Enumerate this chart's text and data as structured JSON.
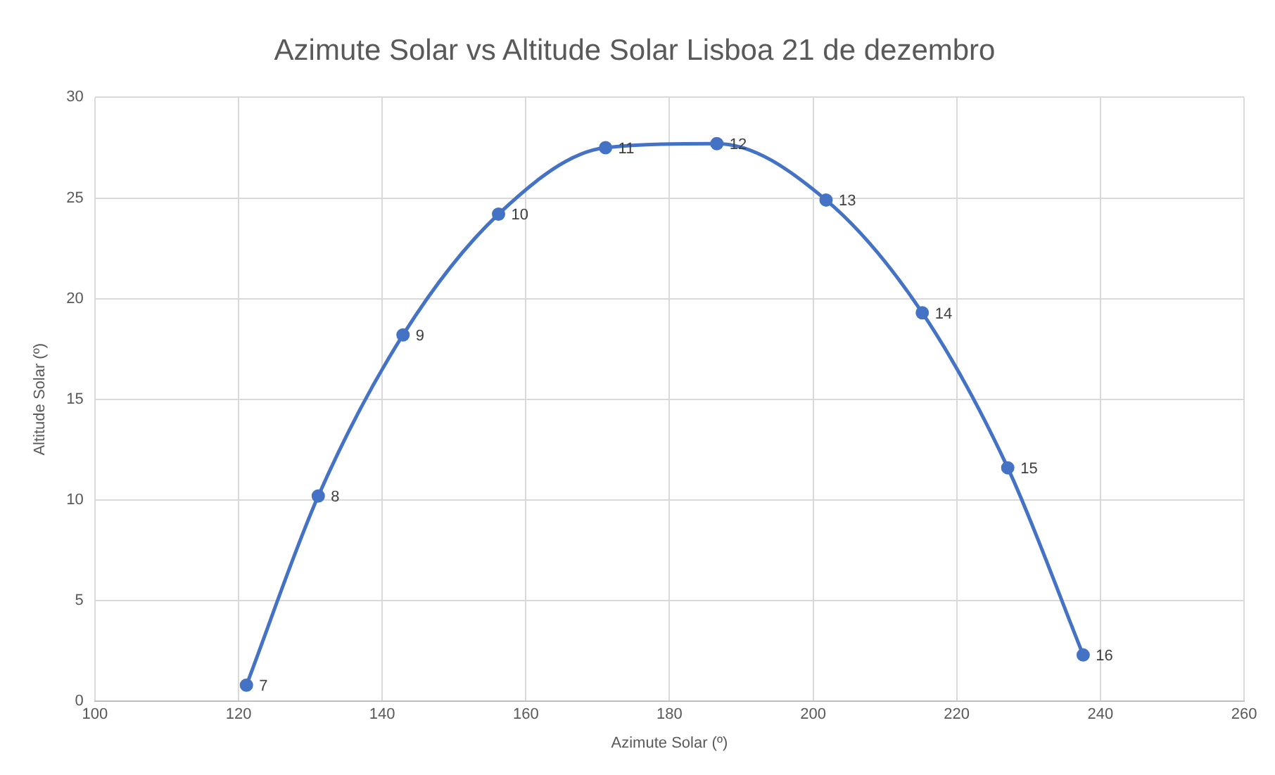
{
  "chart_data": {
    "type": "line",
    "title": "Azimute Solar vs Altitude Solar Lisboa 21 de dezembro",
    "xlabel": "Azimute Solar (º)",
    "ylabel": "Altitude Solar (º)",
    "series": [
      {
        "color": "#4472c4",
        "x": [
          121.1,
          131.1,
          142.9,
          156.2,
          171.1,
          186.6,
          201.8,
          215.2,
          227.1,
          237.6
        ],
        "values": [
          0.8,
          10.2,
          18.2,
          24.2,
          27.5,
          27.7,
          24.9,
          19.3,
          11.6,
          2.3
        ]
      }
    ],
    "xlim": [
      100,
      260
    ],
    "xticks": [
      100,
      120,
      140,
      160,
      180,
      200,
      220,
      240,
      260
    ],
    "ylim": [
      0,
      30
    ],
    "yticks": [
      0,
      5,
      10,
      15,
      20,
      25,
      30
    ],
    "grid": true,
    "legend": false,
    "marker": "circle",
    "line_style": "solid",
    "annotations": [
      {
        "text": "7",
        "x": 121.1,
        "y": 0.8
      },
      {
        "text": "8",
        "x": 131.1,
        "y": 10.2
      },
      {
        "text": "9",
        "x": 142.9,
        "y": 18.2
      },
      {
        "text": "10",
        "x": 156.2,
        "y": 24.2
      },
      {
        "text": "11",
        "x": 171.1,
        "y": 27.5
      },
      {
        "text": "12",
        "x": 186.6,
        "y": 27.7
      },
      {
        "text": "13",
        "x": 201.8,
        "y": 24.9
      },
      {
        "text": "14",
        "x": 215.2,
        "y": 19.3
      },
      {
        "text": "15",
        "x": 227.1,
        "y": 11.6
      },
      {
        "text": "16",
        "x": 237.6,
        "y": 2.3
      }
    ]
  }
}
